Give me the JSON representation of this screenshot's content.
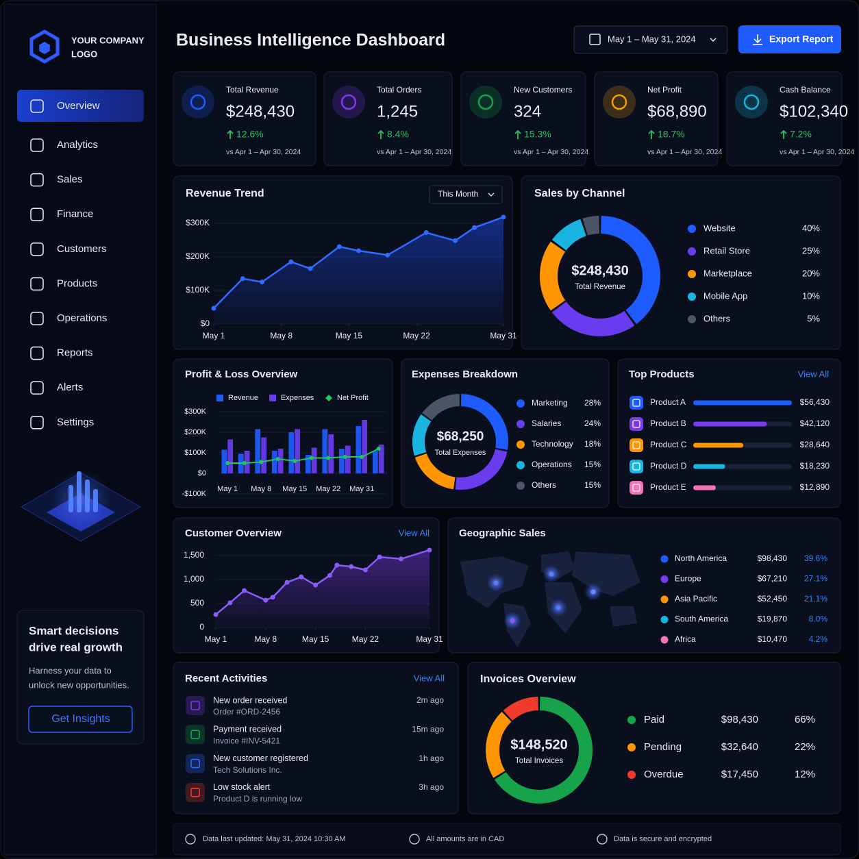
{
  "sidebar": {
    "logo": [
      "YOUR COMPANY",
      "LOGO"
    ],
    "nav": [
      "Overview",
      "Analytics",
      "Sales",
      "Finance",
      "Customers",
      "Products",
      "Operations",
      "Reports",
      "Alerts",
      "Settings"
    ],
    "promo": {
      "title": [
        "Smart decisions",
        "drive real growth"
      ],
      "text": [
        "Harness your data to",
        "unlock new opportunities."
      ],
      "button": "Get Insights"
    }
  },
  "header": {
    "title": "Business Intelligence Dashboard",
    "date_range": "May 1 – May 31, 2024",
    "export": "Export Report"
  },
  "kpis": [
    {
      "label": "Total Revenue",
      "value": "$248,430",
      "change": "12.6%",
      "compare": "vs Apr 1 – Apr 30, 2024",
      "color": "#1f5cff"
    },
    {
      "label": "Total Orders",
      "value": "1,245",
      "change": "8.4%",
      "compare": "vs Apr 1 – Apr 30, 2024",
      "color": "#7c3aed"
    },
    {
      "label": "New Customers",
      "value": "324",
      "change": "15.3%",
      "compare": "vs Apr 1 – Apr 30, 2024",
      "color": "#16a34a"
    },
    {
      "label": "Net Profit",
      "value": "$68,890",
      "change": "18.7%",
      "compare": "vs Apr 1 – Apr 30, 2024",
      "color": "#f59e0b"
    },
    {
      "label": "Cash Balance",
      "value": "$102,340",
      "change": "7.2%",
      "compare": "vs Apr 1 – Apr 30, 2024",
      "color": "#19b5e0"
    }
  ],
  "revenue_trend": {
    "type": "line",
    "title": "Revenue Trend",
    "filter": "This Month",
    "color": "#2f6bff",
    "x": [
      1,
      4,
      6,
      9,
      11,
      14,
      16,
      19,
      23,
      26,
      28,
      31
    ],
    "values": [
      47000,
      135000,
      125000,
      185000,
      165000,
      230000,
      218000,
      205000,
      272000,
      248000,
      287000,
      318000
    ],
    "xlim": [
      1,
      31
    ],
    "xticks": [
      {
        "value": 1,
        "label": "May 1"
      },
      {
        "value": 8,
        "label": "May 8"
      },
      {
        "value": 15,
        "label": "May 15"
      },
      {
        "value": 22,
        "label": "May 22"
      },
      {
        "value": 31,
        "label": "May 31"
      }
    ],
    "ylim": [
      0,
      320000
    ],
    "yticks": [
      {
        "value": 0,
        "label": "$0"
      },
      {
        "value": 100000,
        "label": "$100K"
      },
      {
        "value": 200000,
        "label": "$200K"
      },
      {
        "value": 300000,
        "label": "$300K"
      }
    ]
  },
  "sales_by_channel": {
    "type": "donut",
    "title": "Sales by Channel",
    "total": "$248,430",
    "total_label": "Total Revenue",
    "categories": [
      "Website",
      "Retail Store",
      "Marketplace",
      "Mobile App",
      "Others"
    ],
    "values": [
      40,
      25,
      20,
      10,
      5
    ],
    "value_labels": [
      "40%",
      "25%",
      "20%",
      "10%",
      "5%"
    ],
    "colors": [
      "#1f5cff",
      "#6a3cf0",
      "#ff9500",
      "#19b5e0",
      "#4a5568"
    ]
  },
  "profit_loss": {
    "type": "bar",
    "title": "Profit & Loss Overview",
    "categories": [
      "May 1",
      null,
      "May 8",
      null,
      "May 15",
      null,
      "May 22",
      null,
      "May 31",
      null
    ],
    "series": [
      {
        "name": "Revenue",
        "color": "#1f5cff",
        "values": [
          115000,
          95000,
          215000,
          110000,
          200000,
          90000,
          215000,
          120000,
          230000,
          110000
        ]
      },
      {
        "name": "Expenses",
        "color": "#6a3cf0",
        "values": [
          165000,
          110000,
          175000,
          120000,
          215000,
          125000,
          190000,
          135000,
          260000,
          140000
        ]
      },
      {
        "name": "Net Profit",
        "type": "line",
        "color": "#22c55e",
        "values": [
          50000,
          50000,
          55000,
          70000,
          60000,
          75000,
          75000,
          80000,
          80000,
          120000
        ]
      }
    ],
    "ylim": [
      -100000,
      300000
    ],
    "yticks": [
      {
        "value": -100000,
        "label": "-$100K"
      },
      {
        "value": 0,
        "label": "$0"
      },
      {
        "value": 100000,
        "label": "$100K"
      },
      {
        "value": 200000,
        "label": "$200K"
      },
      {
        "value": 300000,
        "label": "$300K"
      }
    ]
  },
  "expenses": {
    "type": "donut",
    "title": "Expenses Breakdown",
    "total": "$68,250",
    "total_label": "Total Expenses",
    "categories": [
      "Marketing",
      "Salaries",
      "Technology",
      "Operations",
      "Others"
    ],
    "values": [
      28,
      24,
      18,
      15,
      15
    ],
    "value_labels": [
      "28%",
      "24%",
      "18%",
      "15%",
      "15%"
    ],
    "colors": [
      "#1f5cff",
      "#6a3cf0",
      "#ff9500",
      "#19b5e0",
      "#4a5568"
    ]
  },
  "top_products": {
    "type": "hbar",
    "title": "Top Products",
    "link": "View All",
    "categories": [
      "Product A",
      "Product B",
      "Product C",
      "Product D",
      "Product E"
    ],
    "values": [
      56430,
      42120,
      28640,
      18230,
      12890
    ],
    "value_labels": [
      "$56,430",
      "$42,120",
      "$28,640",
      "$18,230",
      "$12,890"
    ],
    "colors": [
      "#1f5cff",
      "#7c3aed",
      "#ff9500",
      "#19b5e0",
      "#f472b6"
    ],
    "xlim": [
      0,
      56430
    ]
  },
  "customer_overview": {
    "type": "line",
    "title": "Customer Overview",
    "link": "View All",
    "color": "#8b5cf6",
    "x": [
      1,
      3,
      5,
      8,
      9,
      11,
      13,
      15,
      17,
      18,
      20,
      22,
      24,
      27,
      31
    ],
    "values": [
      270,
      515,
      770,
      570,
      630,
      940,
      1055,
      885,
      1085,
      1300,
      1270,
      1200,
      1470,
      1430,
      1615
    ],
    "xlim": [
      1,
      31
    ],
    "xticks": [
      {
        "value": 1,
        "label": "May 1"
      },
      {
        "value": 8,
        "label": "May 8"
      },
      {
        "value": 15,
        "label": "May 15"
      },
      {
        "value": 22,
        "label": "May 22"
      },
      {
        "value": 31,
        "label": "May 31"
      }
    ],
    "ylim": [
      0,
      1650
    ],
    "yticks": [
      0,
      500,
      {
        "value": 1000,
        "label": "1,000"
      },
      {
        "value": 1500,
        "label": "1,500"
      }
    ]
  },
  "geographic_sales": {
    "title": "Geographic Sales",
    "regions": [
      {
        "name": "North America",
        "amount": "$98,430",
        "share": "39.6%",
        "color": "#1f5cff"
      },
      {
        "name": "Europe",
        "amount": "$67,210",
        "share": "27.1%",
        "color": "#7c3aed"
      },
      {
        "name": "Asia Pacific",
        "amount": "$52,450",
        "share": "21.1%",
        "color": "#ff9500"
      },
      {
        "name": "South America",
        "amount": "$19,870",
        "share": "8.0%",
        "color": "#19b5e0"
      },
      {
        "name": "Africa",
        "amount": "$10,470",
        "share": "4.2%",
        "color": "#f472b6"
      }
    ]
  },
  "recent_activities": {
    "title": "Recent Activities",
    "link": "View All",
    "items": [
      {
        "title": "New order received",
        "detail": "Order #ORD-2456",
        "time": "2m ago",
        "color": "#7c3aed"
      },
      {
        "title": "Payment received",
        "detail": "Invoice #INV-5421",
        "time": "15m ago",
        "color": "#16a34a"
      },
      {
        "title": "New customer registered",
        "detail": "Tech Solutions Inc.",
        "time": "1h ago",
        "color": "#2f6bff"
      },
      {
        "title": "Low stock alert",
        "detail": "Product D is running low",
        "time": "3h ago",
        "color": "#ef3b2c"
      }
    ]
  },
  "invoices": {
    "type": "donut",
    "title": "Invoices Overview",
    "total": "$148,520",
    "total_label": "Total Invoices",
    "categories": [
      "Paid",
      "Pending",
      "Overdue"
    ],
    "amounts": [
      "$98,430",
      "$32,640",
      "$17,450"
    ],
    "values": [
      66,
      22,
      12
    ],
    "value_labels": [
      "66%",
      "22%",
      "12%"
    ],
    "colors": [
      "#16a34a",
      "#ff9500",
      "#ef3b2c"
    ]
  },
  "footer": [
    "Data last updated: May 31, 2024 10:30 AM",
    "All amounts are in CAD",
    "Data is secure and encrypted"
  ]
}
